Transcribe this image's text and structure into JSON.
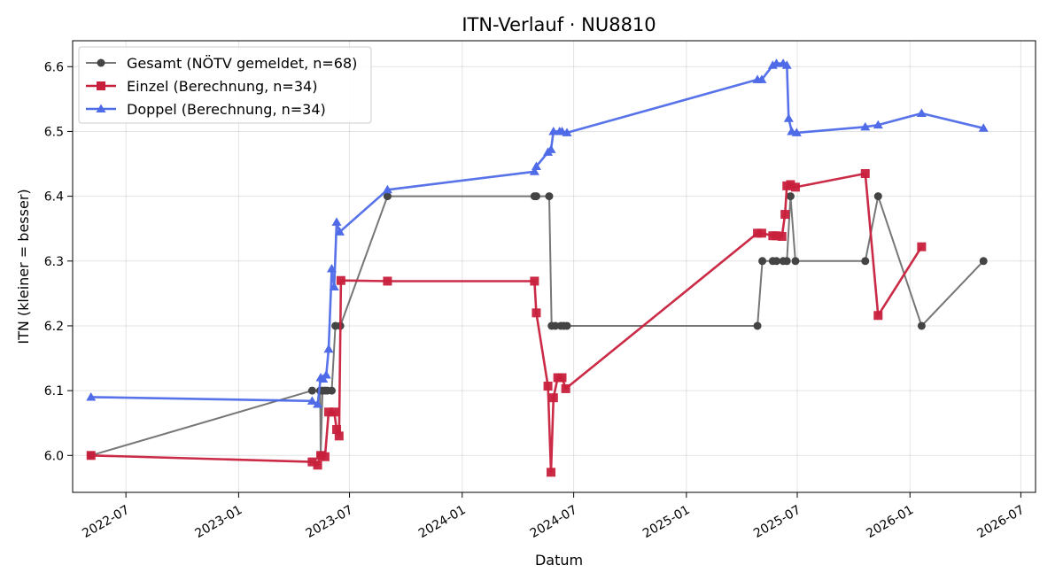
{
  "chart_data": {
    "type": "line",
    "title": "ITN-Verlauf · NU8810",
    "xlabel": "Datum",
    "ylabel": "ITN  (kleiner = besser)",
    "xlim": [
      "2022-04-05",
      "2026-07-25"
    ],
    "ylim": [
      5.943,
      6.64
    ],
    "grid": true,
    "legend_position": "top-left",
    "x_ticks": [
      "2022-07",
      "2023-01",
      "2023-07",
      "2024-01",
      "2024-07",
      "2025-01",
      "2025-07",
      "2026-01",
      "2026-07"
    ],
    "y_ticks": [
      "6.0",
      "6.1",
      "6.2",
      "6.3",
      "6.4",
      "6.5",
      "6.6"
    ],
    "series": [
      {
        "name": "Gesamt (NÖTV gemeldet, n=68)",
        "color": "#555555",
        "marker": "circle",
        "points": [
          [
            "2022-05-05",
            6.0
          ],
          [
            "2023-05-01",
            6.1
          ],
          [
            "2023-05-14",
            6.1
          ],
          [
            "2023-05-15",
            6.0
          ],
          [
            "2023-05-18",
            6.1
          ],
          [
            "2023-05-22",
            6.1
          ],
          [
            "2023-05-26",
            6.1
          ],
          [
            "2023-06-02",
            6.1
          ],
          [
            "2023-06-08",
            6.2
          ],
          [
            "2023-06-16",
            6.2
          ],
          [
            "2023-09-01",
            6.4
          ],
          [
            "2024-04-28",
            6.4
          ],
          [
            "2024-05-01",
            6.4
          ],
          [
            "2024-05-22",
            6.4
          ],
          [
            "2024-05-26",
            6.2
          ],
          [
            "2024-06-01",
            6.2
          ],
          [
            "2024-06-10",
            6.2
          ],
          [
            "2024-06-15",
            6.2
          ],
          [
            "2024-06-20",
            6.2
          ],
          [
            "2025-04-27",
            6.2
          ],
          [
            "2025-05-05",
            6.3
          ],
          [
            "2025-05-22",
            6.3
          ],
          [
            "2025-05-28",
            6.3
          ],
          [
            "2025-06-08",
            6.3
          ],
          [
            "2025-06-14",
            6.3
          ],
          [
            "2025-06-20",
            6.4
          ],
          [
            "2025-06-28",
            6.3
          ],
          [
            "2025-10-20",
            6.3
          ],
          [
            "2025-11-10",
            6.4
          ],
          [
            "2026-01-20",
            6.2
          ],
          [
            "2026-05-01",
            6.3
          ]
        ]
      },
      {
        "name": "Einzel (Berechnung, n=34)",
        "color": "#c8203c",
        "marker": "square",
        "points": [
          [
            "2022-05-05",
            6.0
          ],
          [
            "2023-05-01",
            5.99
          ],
          [
            "2023-05-10",
            5.985
          ],
          [
            "2023-05-15",
            6.0
          ],
          [
            "2023-05-22",
            5.998
          ],
          [
            "2023-05-28",
            6.067
          ],
          [
            "2023-06-06",
            6.067
          ],
          [
            "2023-06-10",
            6.04
          ],
          [
            "2023-06-14",
            6.03
          ],
          [
            "2023-06-17",
            6.27
          ],
          [
            "2023-09-01",
            6.269
          ],
          [
            "2024-04-28",
            6.269
          ],
          [
            "2024-05-01",
            6.22
          ],
          [
            "2024-05-20",
            6.107
          ],
          [
            "2024-05-25",
            5.974
          ],
          [
            "2024-05-29",
            6.089
          ],
          [
            "2024-06-05",
            6.12
          ],
          [
            "2024-06-12",
            6.12
          ],
          [
            "2024-06-18",
            6.103
          ],
          [
            "2025-04-27",
            6.343
          ],
          [
            "2025-05-04",
            6.343
          ],
          [
            "2025-05-22",
            6.339
          ],
          [
            "2025-05-28",
            6.339
          ],
          [
            "2025-06-06",
            6.338
          ],
          [
            "2025-06-11",
            6.372
          ],
          [
            "2025-06-14",
            6.416
          ],
          [
            "2025-06-20",
            6.418
          ],
          [
            "2025-06-28",
            6.414
          ],
          [
            "2025-10-20",
            6.435
          ],
          [
            "2025-11-10",
            6.216
          ],
          [
            "2026-01-20",
            6.322
          ]
        ]
      },
      {
        "name": "Doppel (Berechnung, n=34)",
        "color": "#4f6be8",
        "marker": "triangle",
        "points": [
          [
            "2022-05-05",
            6.09
          ],
          [
            "2023-05-01",
            6.084
          ],
          [
            "2023-05-10",
            6.079
          ],
          [
            "2023-05-15",
            6.12
          ],
          [
            "2023-05-19",
            6.118
          ],
          [
            "2023-05-24",
            6.124
          ],
          [
            "2023-05-28",
            6.164
          ],
          [
            "2023-06-02",
            6.288
          ],
          [
            "2023-06-06",
            6.26
          ],
          [
            "2023-06-10",
            6.36
          ],
          [
            "2023-06-15",
            6.345
          ],
          [
            "2023-09-01",
            6.41
          ],
          [
            "2024-04-28",
            6.438
          ],
          [
            "2024-05-01",
            6.446
          ],
          [
            "2024-05-20",
            6.468
          ],
          [
            "2024-05-25",
            6.472
          ],
          [
            "2024-05-29",
            6.5
          ],
          [
            "2024-06-08",
            6.5
          ],
          [
            "2024-06-12",
            6.5
          ],
          [
            "2024-06-20",
            6.498
          ],
          [
            "2025-04-27",
            6.58
          ],
          [
            "2025-05-04",
            6.58
          ],
          [
            "2025-05-22",
            6.602
          ],
          [
            "2025-05-28",
            6.605
          ],
          [
            "2025-06-08",
            6.605
          ],
          [
            "2025-06-14",
            6.602
          ],
          [
            "2025-06-17",
            6.52
          ],
          [
            "2025-06-22",
            6.5
          ],
          [
            "2025-06-30",
            6.498
          ],
          [
            "2025-10-20",
            6.507
          ],
          [
            "2025-11-10",
            6.51
          ],
          [
            "2026-01-20",
            6.528
          ],
          [
            "2026-05-01",
            6.505
          ]
        ]
      }
    ]
  }
}
